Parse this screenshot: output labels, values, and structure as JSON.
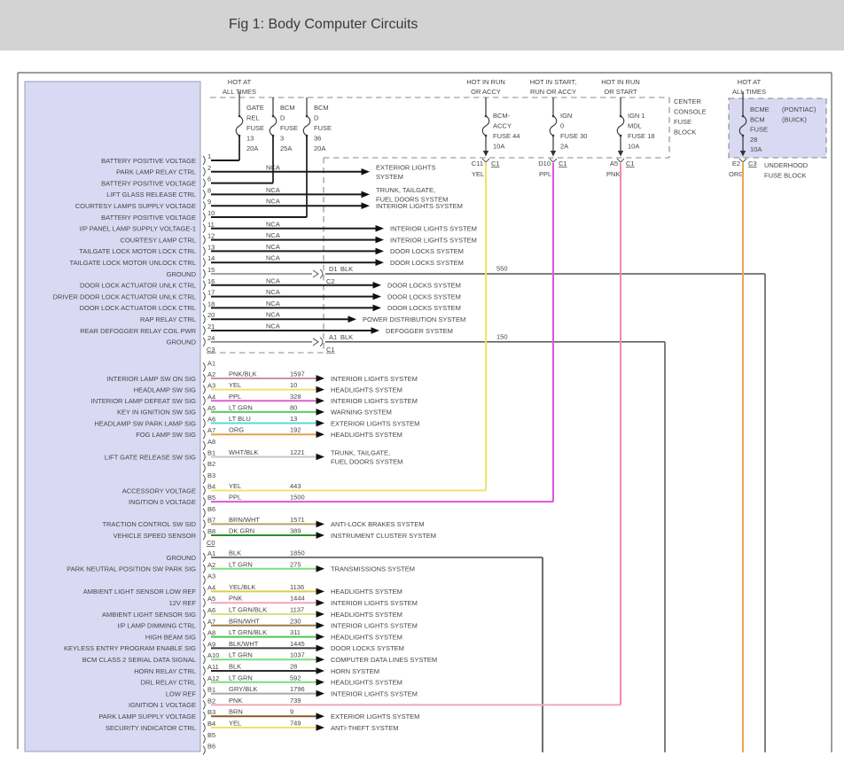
{
  "header": {
    "title": "Fig 1: Body Computer Circuits"
  },
  "feeds_top": [
    {
      "label": [
        "HOT AT",
        "ALL TIMES"
      ]
    },
    {
      "label": [
        "HOT IN RUN",
        "OR ACCY"
      ]
    },
    {
      "label": [
        "HOT IN START,",
        "RUN OR ACCY"
      ]
    },
    {
      "label": [
        "HOT IN RUN",
        "OR START"
      ]
    },
    {
      "label": [
        "HOT AT",
        "ALL TIMES"
      ]
    }
  ],
  "fuse_blocks": {
    "left": {
      "fuses": [
        [
          "GATE",
          "REL",
          "FUSE",
          "13",
          "20A"
        ],
        [
          "BCM",
          "D",
          "FUSE",
          "3",
          "25A"
        ],
        [
          "BCM",
          "D",
          "FUSE",
          "36",
          "20A"
        ]
      ]
    },
    "center": {
      "label": [
        "CENTER",
        "CONSOLE",
        "FUSE",
        "BLOCK"
      ],
      "fuses": [
        [
          "BCM-",
          "ACCY",
          "FUSE 44",
          "10A"
        ],
        [
          "IGN",
          "0",
          "FUSE 30",
          "2A"
        ],
        [
          "IGN 1",
          "MDL",
          "FUSE 18",
          "10A"
        ]
      ]
    },
    "right": {
      "label": [
        "UNDERHOOD",
        "FUSE BLOCK"
      ],
      "fuse": [
        "BCME",
        "BCM",
        "FUSE",
        "28",
        "10A"
      ],
      "notes": [
        "(PONTIAC)",
        "(BUICK)"
      ]
    }
  },
  "drops": [
    {
      "pin": "C11",
      "conn": "C1",
      "color_code": "YEL",
      "color": "#f0e46a"
    },
    {
      "pin": "D10",
      "conn": "C1",
      "color_code": "PPL",
      "color": "#dd55dd"
    },
    {
      "pin": "A5",
      "conn": "C1",
      "color_code": "PNK",
      "color": "#f08ca6"
    },
    {
      "pin": "E2",
      "conn": "C3",
      "color_code": "ORG",
      "color": "#e8a855"
    }
  ],
  "grounds": [
    {
      "conn_pin": "D1",
      "conn": "C2",
      "code": "BLK",
      "circuit": "550"
    },
    {
      "conn_pin": "A1",
      "conn": "C1",
      "code": "BLK",
      "circuit": "150"
    }
  ],
  "groups": [
    {
      "bottom_label": "C3",
      "rows": [
        {
          "pin": "1",
          "label": "BATTERY POSITIVE VOLTAGE"
        },
        {
          "pin": "2",
          "label": "PARK LAMP RELAY CTRL",
          "code": "NCA",
          "dest": [
            "EXTERIOR LIGHTS",
            "SYSTEM"
          ]
        },
        {
          "pin": "6",
          "label": "BATTERY POSITIVE VOLTAGE"
        },
        {
          "pin": "8",
          "label": "LIFT GLASS RELEASE CTRL",
          "code": "NCA",
          "dest": [
            "TRUNK, TAILGATE,",
            "FUEL DOORS SYSTEM"
          ]
        },
        {
          "pin": "9",
          "label": "COURTESY LAMPS SUPPLY VOLTAGE",
          "code": "NCA",
          "dest": [
            "INTERIOR LIGHTS SYSTEM"
          ]
        },
        {
          "pin": "10",
          "label": "BATTERY POSITIVE VOLTAGE"
        },
        {
          "pin": "11",
          "label": "I/P PANEL LAMP SUPPLY VOLTAGE-1",
          "code": "NCA",
          "dest": [
            "INTERIOR LIGHTS SYSTEM"
          ]
        },
        {
          "pin": "12",
          "label": "COURTESY LAMP CTRL",
          "code": "NCA",
          "dest": [
            "INTERIOR LIGHTS SYSTEM"
          ]
        },
        {
          "pin": "13",
          "label": "TAILGATE LOCK MOTOR LOCK CTRL",
          "code": "NCA",
          "dest": [
            "DOOR LOCKS SYSTEM"
          ]
        },
        {
          "pin": "14",
          "label": "TAILGATE LOCK MOTOR UNLOCK CTRL",
          "code": "NCA",
          "dest": [
            "DOOR LOCKS SYSTEM"
          ]
        },
        {
          "pin": "15",
          "label": "GROUND"
        },
        {
          "pin": "16",
          "label": "DOOR LOCK ACTUATOR UNLK CTRL",
          "code": "NCA",
          "dest": [
            "DOOR LOCKS SYSTEM"
          ]
        },
        {
          "pin": "17",
          "label": "DRIVER DOOR LOCK ACTUATOR UNLK CTRL",
          "code": "NCA",
          "dest": [
            "DOOR LOCKS SYSTEM"
          ]
        },
        {
          "pin": "18",
          "label": "DOOR LOCK ACTUATOR LOCK CTRL",
          "code": "NCA",
          "dest": [
            "DOOR LOCKS SYSTEM"
          ]
        },
        {
          "pin": "20",
          "label": "RAP RELAY CTRL",
          "code": "NCA",
          "dest": [
            "POWER DISTRIBUTION SYSTEM"
          ]
        },
        {
          "pin": "21",
          "label": "REAR DEFOGGER RELAY COIL PWR",
          "code": "NCA",
          "dest": [
            "DEFOGGER SYSTEM"
          ]
        },
        {
          "pin": "24",
          "label": "GROUND"
        }
      ]
    },
    {
      "bottom_label": "C0",
      "rows": [
        {
          "pin": "A1"
        },
        {
          "pin": "A2",
          "label": "INTERIOR LAMP SW ON SIG",
          "code": "PNK/BLK",
          "circuit": "1597",
          "color": "#c993a4",
          "dest": [
            "INTERIOR LIGHTS SYSTEM"
          ]
        },
        {
          "pin": "A3",
          "label": "HEADLAMP SW SIG",
          "code": "YEL",
          "circuit": "10",
          "color": "#eee26a",
          "dest": [
            "HEADLIGHTS SYSTEM"
          ]
        },
        {
          "pin": "A4",
          "label": "INTERIOR LAMP DEFEAT SW SIG",
          "code": "PPL",
          "circuit": "328",
          "color": "#e35fd0",
          "dest": [
            "INTERIOR LIGHTS SYSTEM"
          ]
        },
        {
          "pin": "A5",
          "label": "KEY IN IGNITION SW SIG",
          "code": "LT GRN",
          "circuit": "80",
          "color": "#5ecc5e",
          "dest": [
            "WARNING SYSTEM"
          ]
        },
        {
          "pin": "A6",
          "label": "HEADLAMP SW PARK LAMP SIG",
          "code": "LT BLU",
          "circuit": "13",
          "color": "#58d8d8",
          "dest": [
            "EXTERIOR LIGHTS SYSTEM"
          ]
        },
        {
          "pin": "A7",
          "label": "FOG LAMP SW SIG",
          "code": "ORG",
          "circuit": "192",
          "color": "#e0a050",
          "dest": [
            "HEADLIGHTS SYSTEM"
          ]
        },
        {
          "pin": "A8"
        },
        {
          "pin": "B1",
          "label": "LIFT GATE RELEASE SW SIG",
          "code": "WHT/BLK",
          "circuit": "1221",
          "color": "#c8c8c8",
          "dest": [
            "TRUNK, TAILGATE,",
            "FUEL DOORS SYSTEM"
          ]
        },
        {
          "pin": "B2"
        },
        {
          "pin": "B3"
        },
        {
          "pin": "B4",
          "label": "ACCESSORY VOLTAGE",
          "code": "YEL",
          "circuit": "443",
          "color": "#f0e46a"
        },
        {
          "pin": "B5",
          "label": "INGITION 0 VOLTAGE",
          "code": "PPL",
          "circuit": "1500",
          "color": "#dd55dd"
        },
        {
          "pin": "B6"
        },
        {
          "pin": "B7",
          "label": "TRACTION CONTROL SW SID",
          "code": "BRN/WHT",
          "circuit": "1571",
          "color": "#b3a565",
          "dest": [
            "ANTI-LOCK BRAKES SYSTEM"
          ]
        },
        {
          "pin": "B8",
          "label": "VEHICLE SPEED SENSOR",
          "code": "DK GRN",
          "circuit": "389",
          "color": "#2e8b2e",
          "dest": [
            "INSTRUMENT CLUSTER SYSTEM"
          ]
        }
      ]
    },
    {
      "rows": [
        {
          "pin": "A1",
          "label": "GROUND",
          "code": "BLK",
          "circuit": "1850",
          "color": "#4a4a4a"
        },
        {
          "pin": "A2",
          "label": "PARK NEUTRAL POSITION SW PARK SIG",
          "code": "LT GRN",
          "circuit": "275",
          "color": "#7ade7a",
          "dest": [
            "TRANSMISSIONS SYSTEM"
          ]
        },
        {
          "pin": "A3"
        },
        {
          "pin": "A4",
          "label": "AMBIENT LIGHT SENSOR LOW REF",
          "code": "YEL/BLK",
          "circuit": "1136",
          "color": "#d8cf55",
          "dest": [
            "HEADLIGHTS SYSTEM"
          ]
        },
        {
          "pin": "A5",
          "label": "12V REF",
          "code": "PNK",
          "circuit": "1444",
          "color": "#f2a6b8",
          "dest": [
            "INTERIOR LIGHTS SYSTEM"
          ]
        },
        {
          "pin": "A6",
          "label": "AMBIENT LIGHT SENSOR SIG",
          "code": "LT GRN/BLK",
          "circuit": "1137",
          "color": "#d9df85",
          "dest": [
            "HEADLIGHTS SYSTEM"
          ]
        },
        {
          "pin": "A7",
          "label": "I/P LAMP DIMMING CTRL",
          "code": "BRN/WHT",
          "circuit": "230",
          "color": "#9b7f3c",
          "dest": [
            "INTERIOR LIGHTS SYSTEM"
          ]
        },
        {
          "pin": "A8",
          "label": "HIGH BEAM SIG",
          "code": "LT GRN/BLK",
          "circuit": "311",
          "color": "#4ec84e",
          "dest": [
            "HEADLIGHTS SYSTEM"
          ]
        },
        {
          "pin": "A9",
          "label": "KEYLESS ENTRY PROGRAM ENABLE SIG",
          "code": "BLK/WHT",
          "circuit": "1445",
          "color": "#3a3a3a",
          "dest": [
            "DOOR LOCKS SYSTEM"
          ]
        },
        {
          "pin": "A10",
          "label": "BCM CLASS 2 SERIAL DATA SIGNAL",
          "code": "LT GRN",
          "circuit": "1037",
          "color": "#7ade7a",
          "dest": [
            "COMPUTER DATA LINES SYSTEM"
          ]
        },
        {
          "pin": "A11",
          "label": "HORN RELAY CTRL",
          "code": "BLK",
          "circuit": "28",
          "color": "#2a2a2a",
          "dest": [
            "HORN SYSTEM"
          ]
        },
        {
          "pin": "A12",
          "label": "DRL RELAY CTRL",
          "code": "LT GRN",
          "circuit": "592",
          "color": "#7ade7a",
          "dest": [
            "HEADLIGHTS SYSTEM"
          ]
        },
        {
          "pin": "B1",
          "label": "LOW REF",
          "code": "GRY/BLK",
          "circuit": "1796",
          "color": "#a8a8a8",
          "dest": [
            "INTERIOR LIGHTS SYSTEM"
          ]
        },
        {
          "pin": "B2",
          "label": "IGNITION 1 VOLTAGE",
          "code": "PNK",
          "circuit": "739",
          "color": "#f2a6b8"
        },
        {
          "pin": "B3",
          "label": "PARK LAMP SUPPLY VOLTAGE",
          "code": "BRN",
          "circuit": "9",
          "color": "#8a5a28",
          "dest": [
            "EXTERIOR LIGHTS SYSTEM"
          ]
        },
        {
          "pin": "B4",
          "label": "SECURITY INDICATOR CTRL",
          "code": "YEL",
          "circuit": "749",
          "color": "#eee26a",
          "dest": [
            "ANTI-THEFT SYSTEM"
          ]
        },
        {
          "pin": "B5"
        },
        {
          "pin": "B6"
        }
      ]
    }
  ]
}
